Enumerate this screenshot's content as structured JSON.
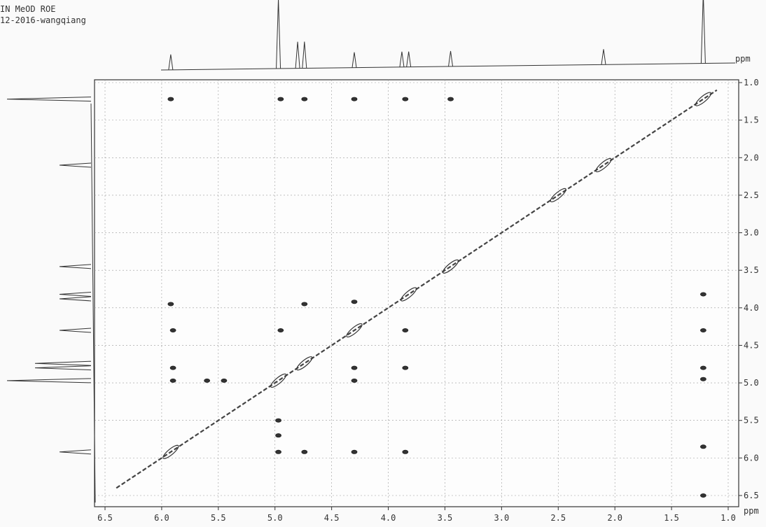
{
  "header": {
    "line1": "IN MeOD ROE",
    "line2": "12-2016-wangqiang"
  },
  "chart_data": {
    "type": "scatter",
    "title": "",
    "xlabel": "ppm",
    "ylabel": "ppm",
    "xlim": [
      6.5,
      1.0
    ],
    "ylim": [
      1.0,
      6.5
    ],
    "x_ticks": [
      "6.5",
      "6.0",
      "5.5",
      "5.0",
      "4.5",
      "4.0",
      "3.5",
      "3.0",
      "2.5",
      "2.0",
      "1.5",
      "1.0"
    ],
    "y_ticks": [
      "1.0",
      "1.5",
      "2.0",
      "2.5",
      "3.0",
      "3.5",
      "4.0",
      "4.5",
      "5.0",
      "5.5",
      "6.0",
      "6.5"
    ],
    "grid": true,
    "projection_peaks_f2": [
      5.92,
      4.97,
      4.8,
      4.74,
      4.3,
      3.88,
      3.82,
      3.45,
      2.1,
      1.22
    ],
    "projection_peaks_f1": [
      1.22,
      2.1,
      3.45,
      3.82,
      3.88,
      4.3,
      4.74,
      4.8,
      4.97,
      5.92
    ],
    "diagonal_peaks": [
      {
        "x": 1.22,
        "y": 1.22
      },
      {
        "x": 2.1,
        "y": 2.1
      },
      {
        "x": 2.5,
        "y": 2.5
      },
      {
        "x": 3.45,
        "y": 3.45
      },
      {
        "x": 3.82,
        "y": 3.82
      },
      {
        "x": 4.3,
        "y": 4.3
      },
      {
        "x": 4.74,
        "y": 4.74
      },
      {
        "x": 4.97,
        "y": 4.97
      },
      {
        "x": 5.92,
        "y": 5.92
      }
    ],
    "cross_peaks": [
      {
        "x": 5.92,
        "y": 1.22
      },
      {
        "x": 4.95,
        "y": 1.22
      },
      {
        "x": 4.74,
        "y": 1.22
      },
      {
        "x": 4.3,
        "y": 1.22
      },
      {
        "x": 3.85,
        "y": 1.22
      },
      {
        "x": 3.45,
        "y": 1.22
      },
      {
        "x": 1.22,
        "y": 3.82
      },
      {
        "x": 1.22,
        "y": 4.3
      },
      {
        "x": 1.22,
        "y": 4.8
      },
      {
        "x": 1.22,
        "y": 4.95
      },
      {
        "x": 1.22,
        "y": 5.85
      },
      {
        "x": 5.92,
        "y": 3.95
      },
      {
        "x": 4.74,
        "y": 3.95
      },
      {
        "x": 4.3,
        "y": 3.92
      },
      {
        "x": 5.9,
        "y": 4.3
      },
      {
        "x": 4.95,
        "y": 4.3
      },
      {
        "x": 3.85,
        "y": 4.3
      },
      {
        "x": 5.9,
        "y": 4.8
      },
      {
        "x": 5.9,
        "y": 4.97
      },
      {
        "x": 4.3,
        "y": 4.8
      },
      {
        "x": 4.3,
        "y": 4.97
      },
      {
        "x": 3.85,
        "y": 4.8
      },
      {
        "x": 5.6,
        "y": 4.97
      },
      {
        "x": 5.45,
        "y": 4.97
      },
      {
        "x": 4.97,
        "y": 5.5
      },
      {
        "x": 4.97,
        "y": 5.7
      },
      {
        "x": 4.97,
        "y": 5.92
      },
      {
        "x": 4.74,
        "y": 5.92
      },
      {
        "x": 4.3,
        "y": 5.92
      },
      {
        "x": 3.85,
        "y": 5.92
      },
      {
        "x": 1.22,
        "y": 6.5
      }
    ]
  }
}
